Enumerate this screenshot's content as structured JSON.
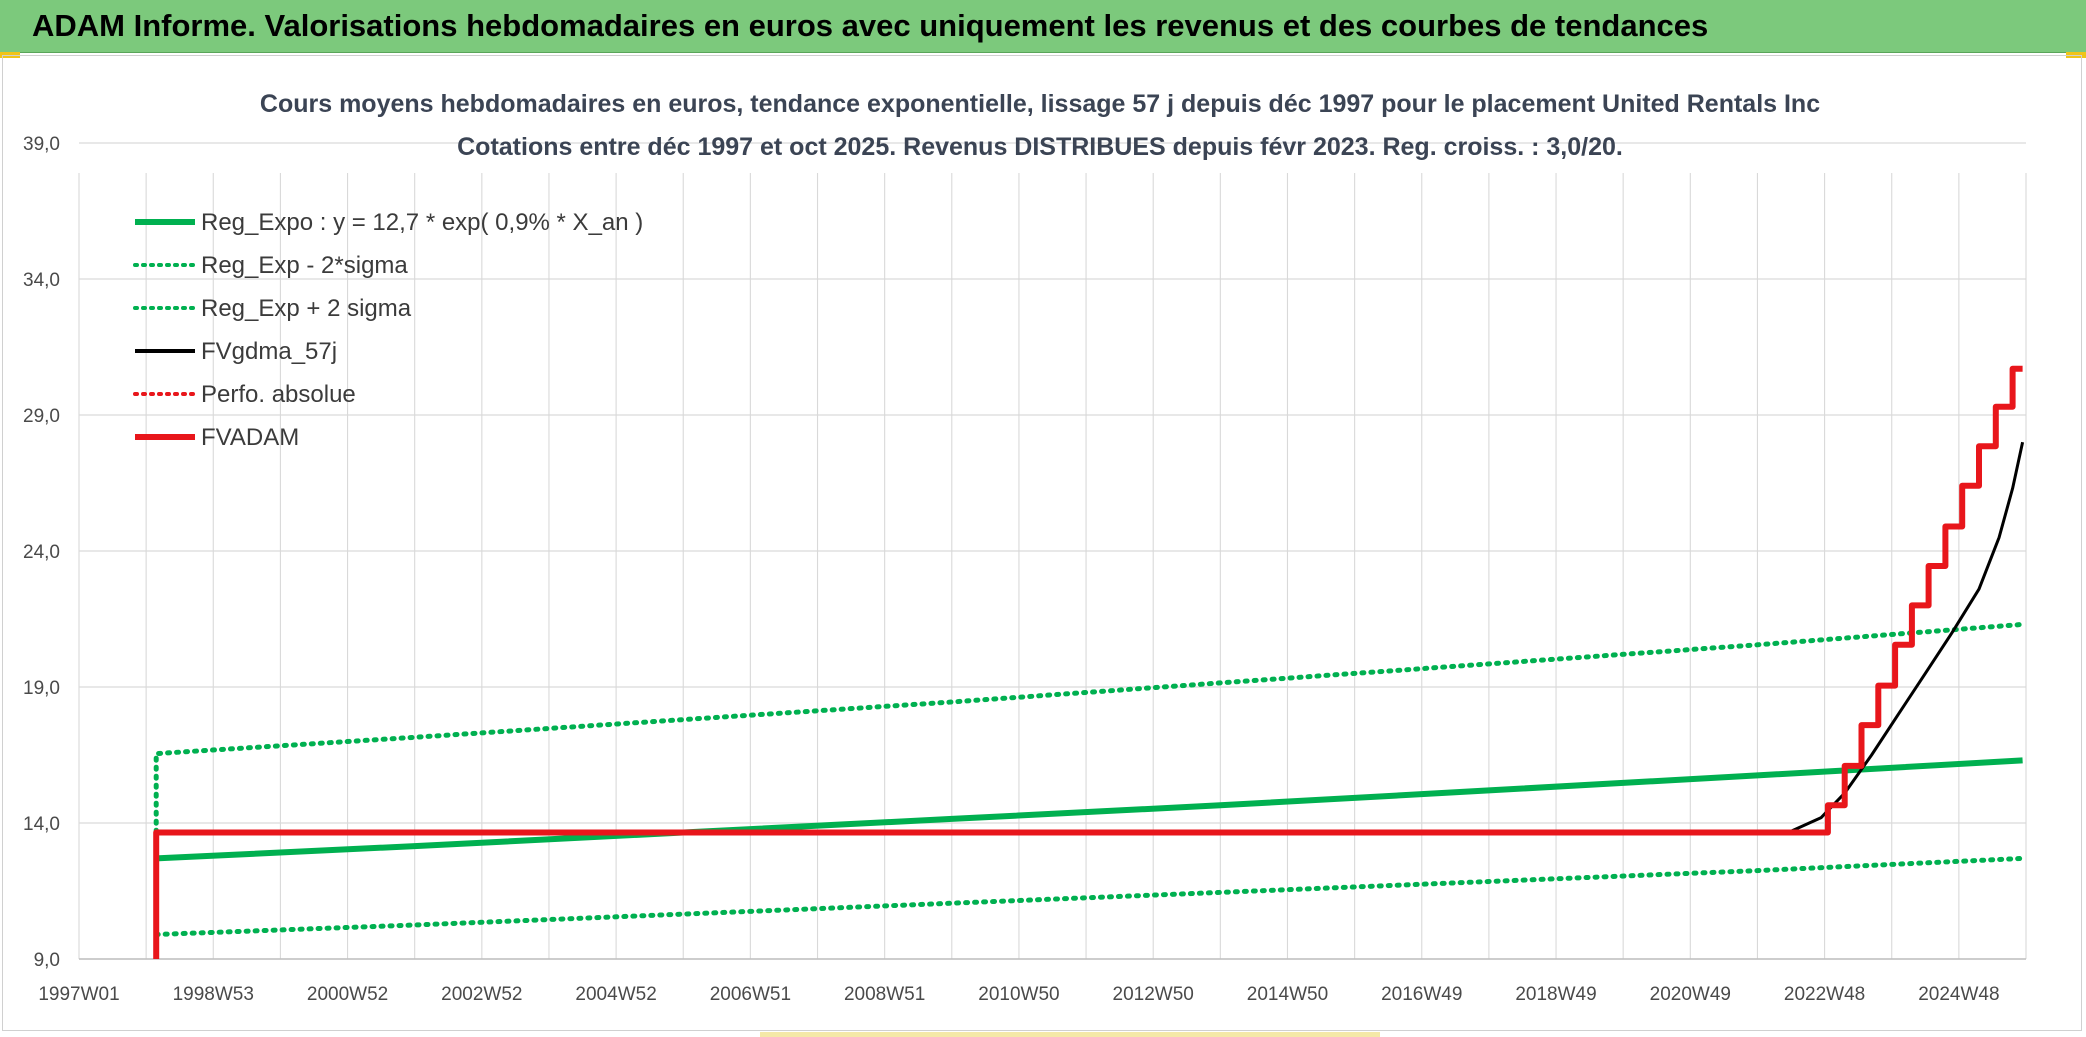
{
  "banner": {
    "title": "ADAM Informe. Valorisations hebdomadaires en euros avec uniquement les revenus et des courbes de tendances"
  },
  "colors": {
    "banner_bg": "#7cc97c",
    "green": "#00b050",
    "red": "#e8161b",
    "black": "#000000",
    "grid": "#d9d9d9"
  },
  "chart_data": {
    "type": "line",
    "title": "Cours moyens hebdomadaires en euros, tendance exponentielle, lissage 57 j depuis déc 1997 pour le placement United Rentals Inc",
    "subtitle": "Cotations entre déc 1997 et oct 2025. Revenus DISTRIBUES depuis févr 2023. Reg. croiss. : 3,0/20.",
    "xlabel": "",
    "ylabel": "",
    "x_range": [
      1997.0,
      2026.0
    ],
    "ylim": [
      9.0,
      39.0
    ],
    "y_ticks": [
      "9,0",
      "14,0",
      "19,0",
      "24,0",
      "29,0",
      "34,0",
      "39,0"
    ],
    "y_tick_values": [
      9,
      14,
      19,
      24,
      29,
      34,
      39
    ],
    "x_ticks": [
      "1997W01",
      "1998W53",
      "2000W52",
      "2002W52",
      "2004W52",
      "2006W51",
      "2008W51",
      "2010W50",
      "2012W50",
      "2014W50",
      "2016W49",
      "2018W49",
      "2020W49",
      "2022W48",
      "2024W48"
    ],
    "x_tick_values": [
      1997.0,
      1999.0,
      2001.0,
      2003.0,
      2005.0,
      2007.0,
      2009.0,
      2011.0,
      2013.0,
      2015.0,
      2017.0,
      2019.0,
      2021.0,
      2023.0,
      2025.0
    ],
    "grid": true,
    "legend_position": "top-left",
    "series": [
      {
        "name": "Reg_Expo : y = 12,7 * exp( 0,9% *  X_an )",
        "style": "solid-thick",
        "color": "#00b050",
        "points": [
          [
            1998.15,
            12.7
          ],
          [
            2002.0,
            13.15
          ],
          [
            2006.0,
            13.65
          ],
          [
            2010.0,
            14.15
          ],
          [
            2014.0,
            14.65
          ],
          [
            2018.0,
            15.2
          ],
          [
            2022.0,
            15.75
          ],
          [
            2025.95,
            16.3
          ]
        ]
      },
      {
        "name": "Reg_Exp - 2*sigma",
        "style": "dotted",
        "color": "#00b050",
        "points": [
          [
            1998.15,
            9.9
          ],
          [
            2002.0,
            10.25
          ],
          [
            2006.0,
            10.65
          ],
          [
            2010.0,
            11.05
          ],
          [
            2014.0,
            11.45
          ],
          [
            2018.0,
            11.85
          ],
          [
            2022.0,
            12.25
          ],
          [
            2025.95,
            12.7
          ]
        ]
      },
      {
        "name": "Reg_Exp + 2 sigma",
        "style": "dotted",
        "color": "#00b050",
        "points": [
          [
            1998.15,
            13.0
          ],
          [
            1998.15,
            16.55
          ],
          [
            2002.0,
            17.15
          ],
          [
            2006.0,
            17.8
          ],
          [
            2010.0,
            18.45
          ],
          [
            2014.0,
            19.15
          ],
          [
            2018.0,
            19.85
          ],
          [
            2022.0,
            20.55
          ],
          [
            2025.95,
            21.3
          ]
        ]
      },
      {
        "name": "FVgdma_57j",
        "style": "solid",
        "color": "#000000",
        "points": [
          [
            1998.15,
            13.65
          ],
          [
            2022.0,
            13.65
          ],
          [
            2022.5,
            13.7
          ],
          [
            2022.95,
            14.2
          ],
          [
            2023.3,
            15.1
          ],
          [
            2023.7,
            16.5
          ],
          [
            2024.1,
            18.0
          ],
          [
            2024.5,
            19.5
          ],
          [
            2024.9,
            21.0
          ],
          [
            2025.3,
            22.6
          ],
          [
            2025.6,
            24.5
          ],
          [
            2025.8,
            26.3
          ],
          [
            2025.95,
            28.0
          ]
        ]
      },
      {
        "name": "Perfo. absolue",
        "style": "dotted",
        "color": "#e8161b",
        "points": []
      },
      {
        "name": "FVADAM",
        "style": "solid-thick",
        "color": "#e8161b",
        "points": [
          [
            1998.15,
            9.0
          ],
          [
            1998.15,
            13.65
          ],
          [
            2023.05,
            13.65
          ],
          [
            2023.05,
            14.65
          ],
          [
            2023.3,
            14.65
          ],
          [
            2023.3,
            16.1
          ],
          [
            2023.55,
            16.1
          ],
          [
            2023.55,
            17.6
          ],
          [
            2023.8,
            17.6
          ],
          [
            2023.8,
            19.05
          ],
          [
            2024.05,
            19.05
          ],
          [
            2024.05,
            20.55
          ],
          [
            2024.3,
            20.55
          ],
          [
            2024.3,
            22.0
          ],
          [
            2024.55,
            22.0
          ],
          [
            2024.55,
            23.45
          ],
          [
            2024.8,
            23.45
          ],
          [
            2024.8,
            24.9
          ],
          [
            2025.05,
            24.9
          ],
          [
            2025.05,
            26.4
          ],
          [
            2025.3,
            26.4
          ],
          [
            2025.3,
            27.85
          ],
          [
            2025.55,
            27.85
          ],
          [
            2025.55,
            29.3
          ],
          [
            2025.8,
            29.3
          ],
          [
            2025.8,
            30.7
          ],
          [
            2025.95,
            30.7
          ]
        ]
      }
    ]
  }
}
